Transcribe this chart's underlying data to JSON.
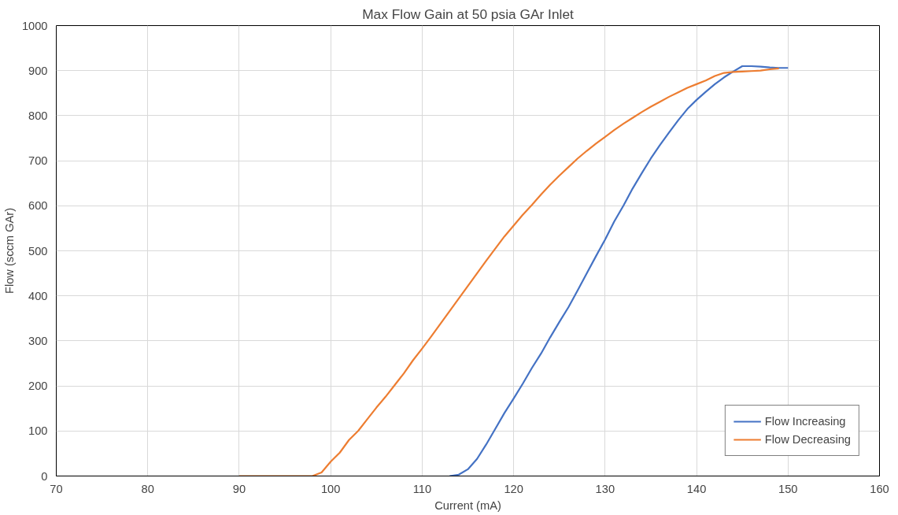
{
  "chart_data": {
    "type": "line",
    "title": "Max Flow Gain at 50 psia GAr Inlet",
    "xlabel": "Current (mA)",
    "ylabel": "Flow (sccm GAr)",
    "xlim": [
      70,
      160
    ],
    "xticks": [
      70,
      80,
      90,
      100,
      110,
      120,
      130,
      140,
      150,
      160
    ],
    "ylim": [
      0,
      1000
    ],
    "yticks": [
      0,
      100,
      200,
      300,
      400,
      500,
      600,
      700,
      800,
      900,
      1000
    ],
    "grid": true,
    "legend": "bottom right",
    "marker": "none",
    "line_style": "solid",
    "series": [
      {
        "name": "Flow Increasing",
        "color": "#4472c4",
        "x": [
          113,
          114,
          115,
          116,
          117,
          118,
          119,
          120,
          121,
          122,
          123,
          124,
          125,
          126,
          127,
          128,
          129,
          130,
          131,
          132,
          133,
          134,
          135,
          136,
          137,
          138,
          139,
          140,
          141,
          142,
          143,
          144,
          145,
          146,
          147,
          148,
          149,
          150
        ],
        "values": [
          0,
          3,
          15,
          38,
          70,
          105,
          140,
          172,
          205,
          240,
          272,
          308,
          342,
          375,
          412,
          450,
          488,
          525,
          565,
          600,
          638,
          672,
          705,
          735,
          763,
          790,
          815,
          835,
          853,
          870,
          885,
          898,
          910,
          910,
          909,
          907,
          906,
          906
        ]
      },
      {
        "name": "Flow Decreasing",
        "color": "#ed7d31",
        "x": [
          90,
          91,
          92,
          93,
          94,
          95,
          96,
          97,
          98,
          99,
          100,
          101,
          102,
          103,
          104,
          105,
          106,
          107,
          108,
          109,
          110,
          111,
          112,
          113,
          114,
          115,
          116,
          117,
          118,
          119,
          120,
          121,
          122,
          123,
          124,
          125,
          126,
          127,
          128,
          129,
          130,
          131,
          132,
          133,
          134,
          135,
          136,
          137,
          138,
          139,
          140,
          141,
          142,
          143,
          144,
          145,
          146,
          147,
          148,
          149
        ],
        "values": [
          0,
          0,
          0,
          0,
          0,
          0,
          0,
          0,
          0,
          8,
          32,
          52,
          80,
          100,
          126,
          152,
          176,
          202,
          228,
          257,
          283,
          310,
          338,
          366,
          394,
          422,
          450,
          478,
          505,
          532,
          556,
          580,
          602,
          625,
          647,
          667,
          686,
          705,
          722,
          738,
          753,
          768,
          782,
          795,
          808,
          820,
          831,
          842,
          852,
          862,
          870,
          878,
          888,
          895,
          897,
          898,
          899,
          900,
          903,
          905
        ]
      }
    ]
  }
}
